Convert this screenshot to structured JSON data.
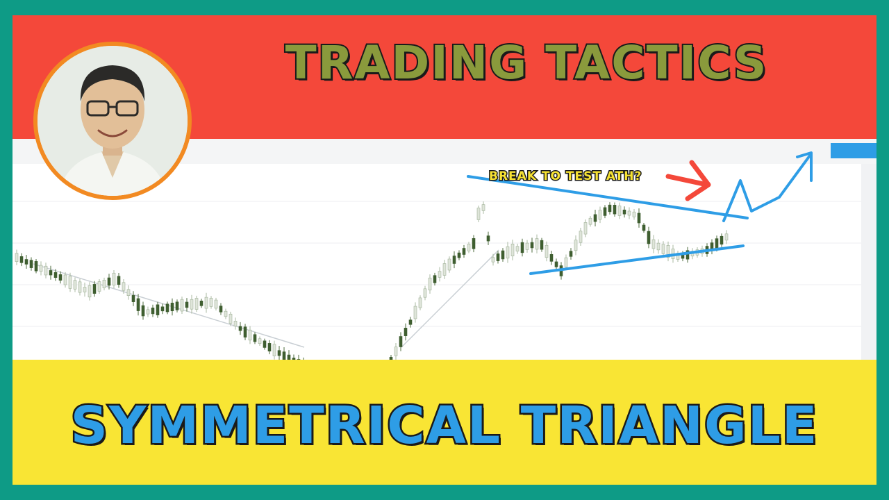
{
  "thumbnail": {
    "top_title": "TRADING TACTICS",
    "bottom_title": "SYMMETRICAL TRIANGLE",
    "annotation": "BREAK TO TEST ATH?"
  },
  "colors": {
    "border": "#0e9b86",
    "top_band": "#f4483a",
    "bottom_band": "#f9e534",
    "title_top": "#8a9a3c",
    "title_bottom": "#2e9de6",
    "trendline": "#2e9de6",
    "arrow_red": "#f4483a",
    "avatar_ring": "#f28a22"
  },
  "icons": [
    "avatar-photo",
    "red-arrow-icon",
    "blue-projection-arrow-icon"
  ]
}
